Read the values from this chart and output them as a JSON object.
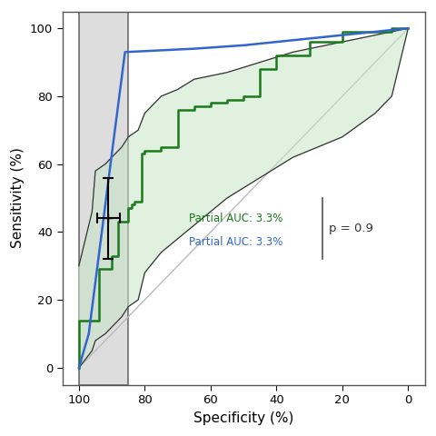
{
  "xlabel": "Specificity (%)",
  "ylabel": "Sensitivity (%)",
  "xlim": [
    105,
    -5
  ],
  "ylim": [
    -5,
    105
  ],
  "xticks": [
    100,
    80,
    60,
    40,
    20,
    0
  ],
  "yticks": [
    0,
    20,
    40,
    60,
    80,
    100
  ],
  "diag_line_color": "#bbbbbb",
  "green_line_color": "#1a7a1a",
  "blue_line_color": "#3366cc",
  "fill_color": "#c8e6c8",
  "fill_alpha": 0.55,
  "fill_edge_color": "#333333",
  "annotation_green": "Partial AUC: 3.3%",
  "annotation_blue": "Partial AUC: 3.3%",
  "annotation_p": "p = 0.9",
  "green_roc_spec": [
    100,
    95,
    94,
    93,
    92,
    91,
    90,
    89,
    88,
    87,
    86,
    85,
    84,
    83,
    82,
    81,
    80,
    75,
    70,
    65,
    60,
    55,
    50,
    45,
    40,
    30,
    20,
    10,
    5,
    0
  ],
  "green_roc_sens": [
    0,
    14,
    14,
    29,
    29,
    29,
    29,
    33,
    33,
    43,
    43,
    43,
    47,
    48,
    49,
    49,
    63,
    64,
    65,
    76,
    77,
    78,
    79,
    80,
    88,
    92,
    96,
    99,
    99,
    100
  ],
  "blue_roc_spec": [
    100,
    97,
    90,
    86,
    65,
    50,
    40,
    30,
    20,
    10,
    0
  ],
  "blue_roc_sens": [
    0,
    10,
    63,
    93,
    94,
    95,
    96,
    97,
    98,
    99,
    100
  ],
  "ci_upper_spec": [
    100,
    96,
    95,
    92,
    90,
    87,
    85,
    82,
    80,
    75,
    70,
    65,
    55,
    45,
    35,
    20,
    10,
    5,
    0
  ],
  "ci_upper_sens": [
    30,
    46,
    58,
    60,
    62,
    65,
    68,
    70,
    75,
    80,
    82,
    85,
    87,
    90,
    93,
    96,
    98,
    99,
    100
  ],
  "ci_lower_spec": [
    100,
    96,
    95,
    92,
    90,
    87,
    85,
    82,
    80,
    75,
    65,
    55,
    45,
    35,
    20,
    10,
    5,
    0
  ],
  "ci_lower_sens": [
    0,
    5,
    8,
    10,
    12,
    15,
    18,
    20,
    28,
    34,
    42,
    50,
    56,
    62,
    68,
    75,
    80,
    100
  ],
  "errorbar_x": 91,
  "errorbar_y": 44,
  "errorbar_xerr": 3.5,
  "errorbar_yerr": 12,
  "gray_xmin": 85,
  "gray_xmax": 100,
  "gray_color": "#d8d8d8",
  "gray_alpha": 0.85,
  "background_color": "#ffffff",
  "ann_green_x": 38,
  "ann_green_y": 44,
  "ann_blue_x": 38,
  "ann_blue_y": 37,
  "ann_vline_x": 26,
  "ann_vline_y1": 32,
  "ann_vline_y2": 50,
  "ann_p_x": 24,
  "ann_p_y": 41
}
